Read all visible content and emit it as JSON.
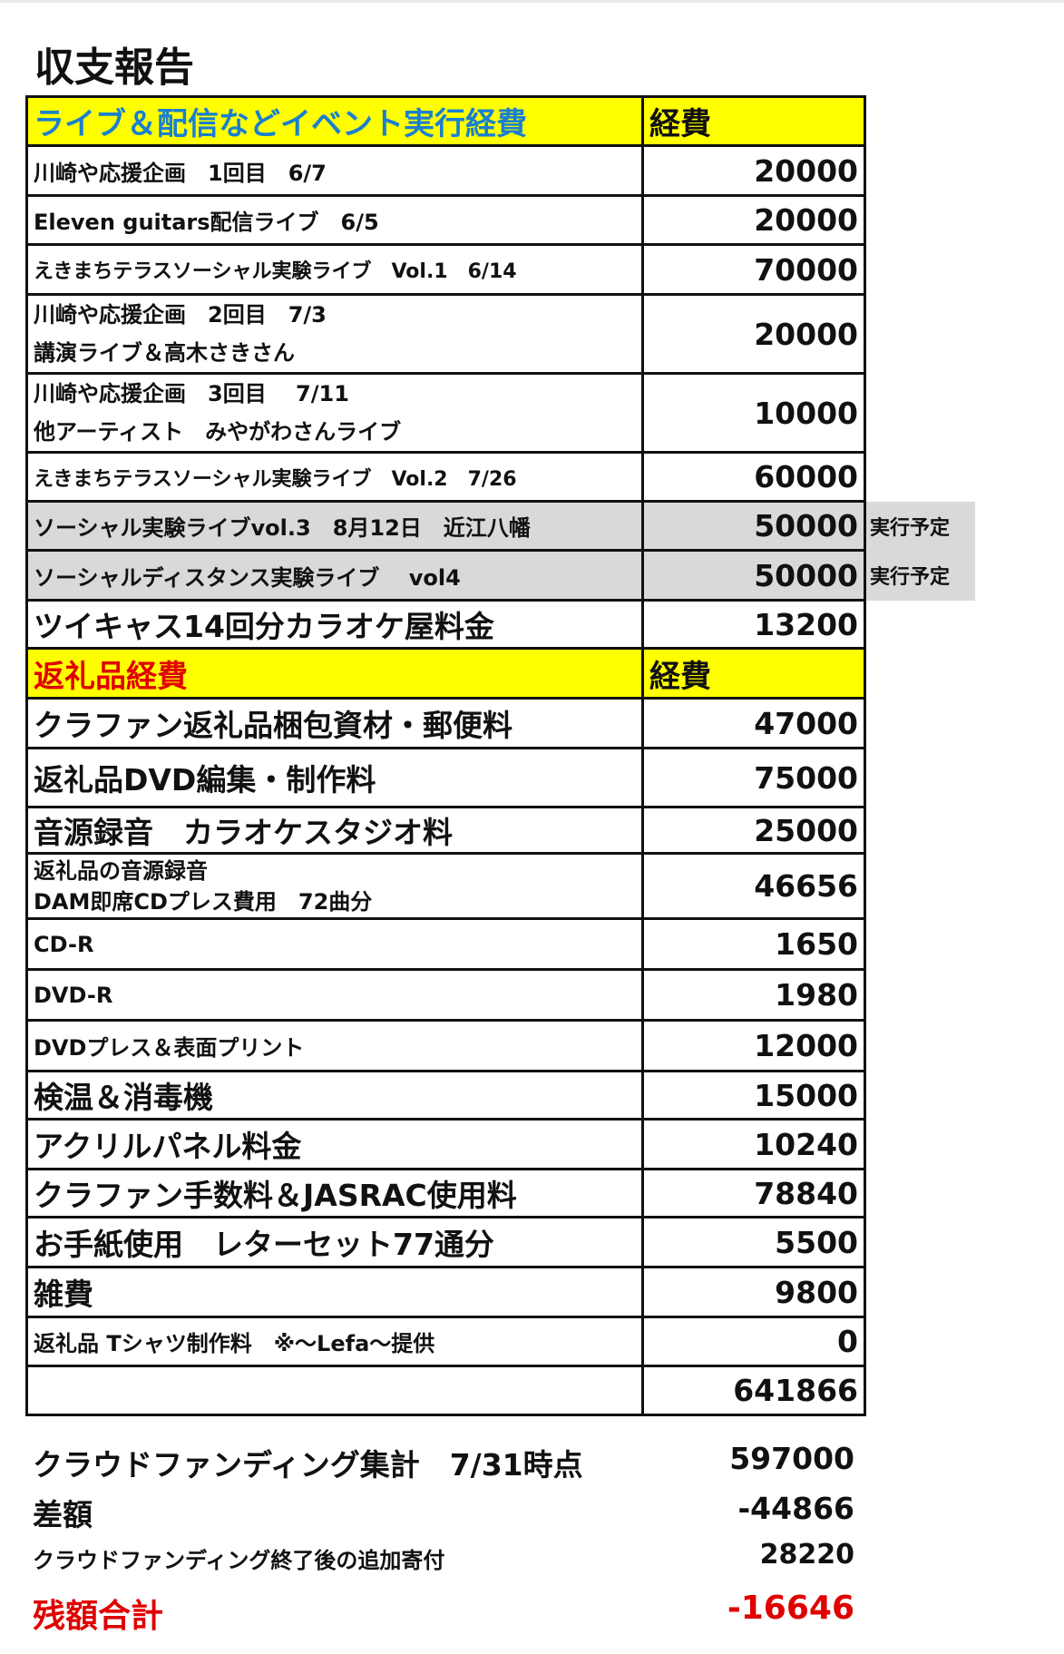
{
  "title": "収支報告",
  "section1": {
    "header": "ライブ＆配信などイベント実行経費",
    "cost_header": "経費"
  },
  "rows1": [
    {
      "label": "川崎や応援企画　1回目　6/7",
      "value": "20000"
    },
    {
      "label": "Eleven guitars配信ライブ　6/5",
      "value": "20000"
    },
    {
      "label": "えきまちテラスソーシャル実験ライブ　Vol.1　6/14",
      "value": "70000"
    },
    {
      "label": "川崎や応援企画　2回目　7/3",
      "label2": "講演ライブ＆高木さきさん",
      "value": "20000"
    },
    {
      "label": "川崎や応援企画　3回目　 7/11",
      "label2": "他アーティスト　みやがわさんライブ",
      "value": "10000"
    },
    {
      "label": "えきまちテラスソーシャル実験ライブ　Vol.2　7/26",
      "value": "60000"
    },
    {
      "label": "ソーシャル実験ライブvol.3　8月12日　近江八幡",
      "value": "50000",
      "note": "実行予定"
    },
    {
      "label": "ソーシャルディスタンス実験ライブ　 vol4",
      "value": "50000",
      "note": "実行予定"
    },
    {
      "label": "ツイキャス14回分カラオケ屋料金",
      "value": "13200"
    }
  ],
  "section2": {
    "header": "返礼品経費",
    "cost_header": "経費"
  },
  "rows2": [
    {
      "label": "クラファン返礼品梱包資材・郵便料",
      "value": "47000"
    },
    {
      "label": "返礼品DVD編集・制作料",
      "value": "75000"
    },
    {
      "label": "音源録音　カラオケスタジオ料",
      "value": "25000"
    },
    {
      "label": "返礼品の音源録音",
      "label2": "DAM即席CDプレス費用　72曲分",
      "value": "46656"
    },
    {
      "label": "CD-R",
      "value": "1650"
    },
    {
      "label": "DVD-R",
      "value": "1980"
    },
    {
      "label": "DVDプレス＆表面プリント",
      "value": "12000"
    },
    {
      "label": "検温＆消毒機",
      "value": "15000"
    },
    {
      "label": "アクリルパネル料金",
      "value": "10240"
    },
    {
      "label": "クラファン手数料＆JASRAC使用料",
      "value": "78840"
    },
    {
      "label": "お手紙使用　レターセット77通分",
      "value": "5500"
    },
    {
      "label": "雑費",
      "value": "9800"
    },
    {
      "label": "返礼品 Tシャツ制作料　※～Lefa～提供",
      "value": "0"
    }
  ],
  "total": "641866",
  "summary": [
    {
      "label": "クラウドファンディング集計　7/31時点",
      "value": "597000"
    },
    {
      "label": "差額",
      "value": "-44866"
    },
    {
      "label": "クラウドファンディング終了後の追加寄付",
      "value": "28220"
    },
    {
      "label": "残額合計",
      "value": "-16646"
    }
  ],
  "colors": {
    "header_bg": "#ffff00",
    "header1_text": "#1a7fd0",
    "header2_text": "#e00000",
    "planned_bg": "#d9d9d9",
    "balance": "#e00000"
  }
}
